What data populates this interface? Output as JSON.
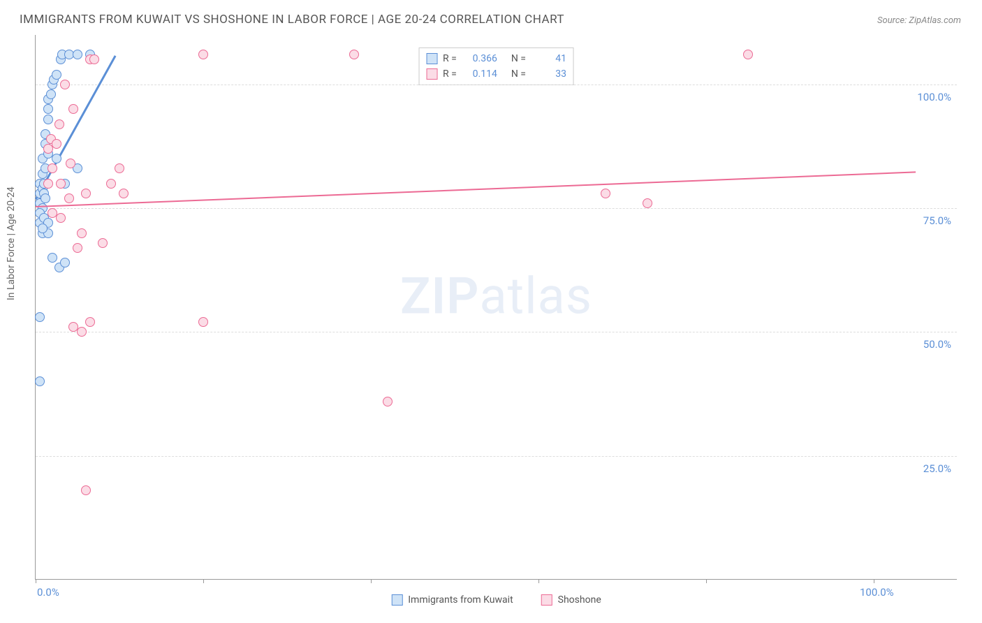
{
  "title": "IMMIGRANTS FROM KUWAIT VS SHOSHONE IN LABOR FORCE | AGE 20-24 CORRELATION CHART",
  "source": "Source: ZipAtlas.com",
  "y_axis_label": "In Labor Force | Age 20-24",
  "watermark_bold": "ZIP",
  "watermark_light": "atlas",
  "chart": {
    "type": "scatter",
    "xlim": [
      0,
      110
    ],
    "ylim": [
      0,
      110
    ],
    "x_ticks": [
      0,
      20,
      40,
      60,
      80,
      100
    ],
    "y_gridlines": [
      25,
      50,
      75,
      100
    ],
    "x_labels": {
      "0": "0.0%",
      "100": "100.0%"
    },
    "y_labels": {
      "25": "25.0%",
      "50": "50.0%",
      "75": "75.0%",
      "100": "100.0%"
    },
    "background_color": "#ffffff",
    "grid_color": "#dddddd",
    "axis_color": "#999999",
    "tick_label_color": "#5b8fd6",
    "marker_radius": 7,
    "marker_stroke_width": 1.5,
    "series": [
      {
        "name": "Immigrants from Kuwait",
        "fill": "#cfe3f7",
        "stroke": "#5b8fd6",
        "R": "0.366",
        "N": "41",
        "trend": {
          "x1": 0,
          "y1": 77,
          "x2": 9.5,
          "y2": 106,
          "width": 2.5
        },
        "points": [
          [
            0.5,
            78
          ],
          [
            0.5,
            76
          ],
          [
            0.5,
            80
          ],
          [
            0.8,
            75
          ],
          [
            0.8,
            79
          ],
          [
            0.8,
            82
          ],
          [
            0.8,
            85
          ],
          [
            1.0,
            78
          ],
          [
            1.0,
            80
          ],
          [
            1.2,
            83
          ],
          [
            1.2,
            88
          ],
          [
            1.2,
            90
          ],
          [
            1.5,
            93
          ],
          [
            1.5,
            95
          ],
          [
            1.5,
            97
          ],
          [
            1.8,
            98
          ],
          [
            2.0,
            100
          ],
          [
            2.2,
            101
          ],
          [
            2.5,
            102
          ],
          [
            2.5,
            85
          ],
          [
            3.0,
            105
          ],
          [
            3.2,
            106
          ],
          [
            3.5,
            80
          ],
          [
            4.0,
            106
          ],
          [
            5.0,
            106
          ],
          [
            6.5,
            106
          ],
          [
            0.5,
            72
          ],
          [
            0.5,
            74
          ],
          [
            0.8,
            70
          ],
          [
            1.0,
            73
          ],
          [
            1.5,
            72
          ],
          [
            1.5,
            70
          ],
          [
            0.5,
            53
          ],
          [
            0.5,
            40
          ],
          [
            0.8,
            71
          ],
          [
            1.2,
            77
          ],
          [
            5.0,
            83
          ],
          [
            2.0,
            65
          ],
          [
            2.8,
            63
          ],
          [
            3.5,
            64
          ],
          [
            1.5,
            86
          ]
        ]
      },
      {
        "name": "Shoshone",
        "fill": "#fbdce6",
        "stroke": "#ec6a94",
        "R": "0.114",
        "N": "33",
        "trend": {
          "x1": 0,
          "y1": 75.5,
          "x2": 105,
          "y2": 82.5,
          "width": 2
        },
        "points": [
          [
            1.5,
            87
          ],
          [
            1.8,
            89
          ],
          [
            2.0,
            83
          ],
          [
            2.5,
            88
          ],
          [
            3.0,
            80
          ],
          [
            3.5,
            100
          ],
          [
            4.0,
            77
          ],
          [
            4.5,
            95
          ],
          [
            5.0,
            67
          ],
          [
            5.5,
            70
          ],
          [
            6.0,
            78
          ],
          [
            6.5,
            105
          ],
          [
            7.0,
            105
          ],
          [
            8.0,
            68
          ],
          [
            9.0,
            80
          ],
          [
            10.0,
            83
          ],
          [
            10.5,
            78
          ],
          [
            4.5,
            51
          ],
          [
            5.5,
            50
          ],
          [
            6.5,
            52
          ],
          [
            6.0,
            18
          ],
          [
            20.0,
            106
          ],
          [
            20.0,
            52
          ],
          [
            38.0,
            106
          ],
          [
            42.0,
            36
          ],
          [
            68.0,
            78
          ],
          [
            73.0,
            76
          ],
          [
            85.0,
            106
          ],
          [
            2.0,
            74
          ],
          [
            3.0,
            73
          ],
          [
            2.8,
            92
          ],
          [
            1.5,
            80
          ],
          [
            4.2,
            84
          ]
        ]
      }
    ]
  },
  "legend_top": {
    "r_label": "R =",
    "n_label": "N ="
  },
  "legend_bottom": [
    {
      "label": "Immigrants from Kuwait",
      "fill": "#cfe3f7",
      "stroke": "#5b8fd6"
    },
    {
      "label": "Shoshone",
      "fill": "#fbdce6",
      "stroke": "#ec6a94"
    }
  ]
}
